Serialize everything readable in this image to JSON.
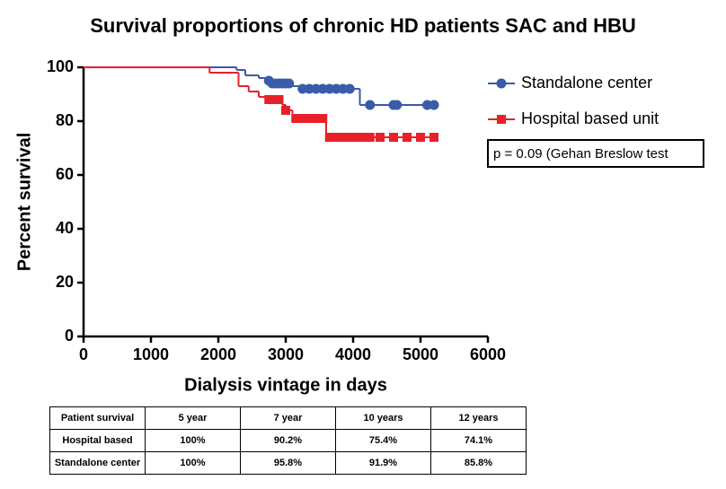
{
  "chart_data": {
    "type": "step",
    "title": "Survival proportions of chronic HD patients SAC and HBU",
    "x_label": "Dialysis vintage in days",
    "y_label": "Percent survival",
    "annotation": "p = 0.09 (Gehan Breslow test",
    "xlim": [
      0,
      6000
    ],
    "xticks": [
      0,
      1000,
      2000,
      3000,
      4000,
      5000,
      6000
    ],
    "ylim": [
      0,
      100
    ],
    "yticks": [
      0,
      20,
      40,
      60,
      80,
      100
    ],
    "grid": false,
    "series": [
      {
        "name": "Standalone center",
        "color": "#3a5ba8",
        "marker": "circle",
        "x": [
          0,
          2270,
          2400,
          2600,
          2700,
          2800,
          3100,
          3200,
          4100,
          5200
        ],
        "values": [
          100,
          99,
          97,
          96,
          95,
          94,
          93,
          92,
          86,
          86
        ],
        "censored_x": [
          2750,
          2800,
          2850,
          2900,
          2950,
          3000,
          3050,
          3250,
          3350,
          3450,
          3550,
          3650,
          3750,
          3850,
          3950,
          4250,
          4600,
          4650,
          5100,
          5200
        ],
        "censored_values": [
          95,
          94,
          94,
          94,
          94,
          94,
          94,
          92,
          92,
          92,
          92,
          92,
          92,
          92,
          92,
          86,
          86,
          86,
          86,
          86
        ]
      },
      {
        "name": "Hospital based unit",
        "color": "#e8202a",
        "marker": "square",
        "x": [
          0,
          1870,
          2300,
          2450,
          2600,
          2700,
          2950,
          3000,
          3100,
          3600,
          5200
        ],
        "values": [
          100,
          98,
          93,
          91,
          89,
          88,
          86,
          84,
          81,
          74,
          74
        ],
        "censored_x": [
          2750,
          2850,
          2900,
          3000,
          3150,
          3250,
          3350,
          3450,
          3550,
          3650,
          3750,
          3850,
          3950,
          4050,
          4150,
          4250,
          4400,
          4600,
          4800,
          5000,
          5200
        ],
        "censored_values": [
          88,
          88,
          88,
          84,
          81,
          81,
          81,
          81,
          81,
          74,
          74,
          74,
          74,
          74,
          74,
          74,
          74,
          74,
          74,
          74,
          74
        ]
      }
    ]
  },
  "table": {
    "header": [
      "Patient survival",
      "5 year",
      "7 year",
      "10 years",
      "12 years"
    ],
    "rows": [
      [
        "Hospital based",
        "100%",
        "90.2%",
        "75.4%",
        "74.1%"
      ],
      [
        "Standalone center",
        "100%",
        "95.8%",
        "91.9%",
        "85.8%"
      ]
    ]
  }
}
